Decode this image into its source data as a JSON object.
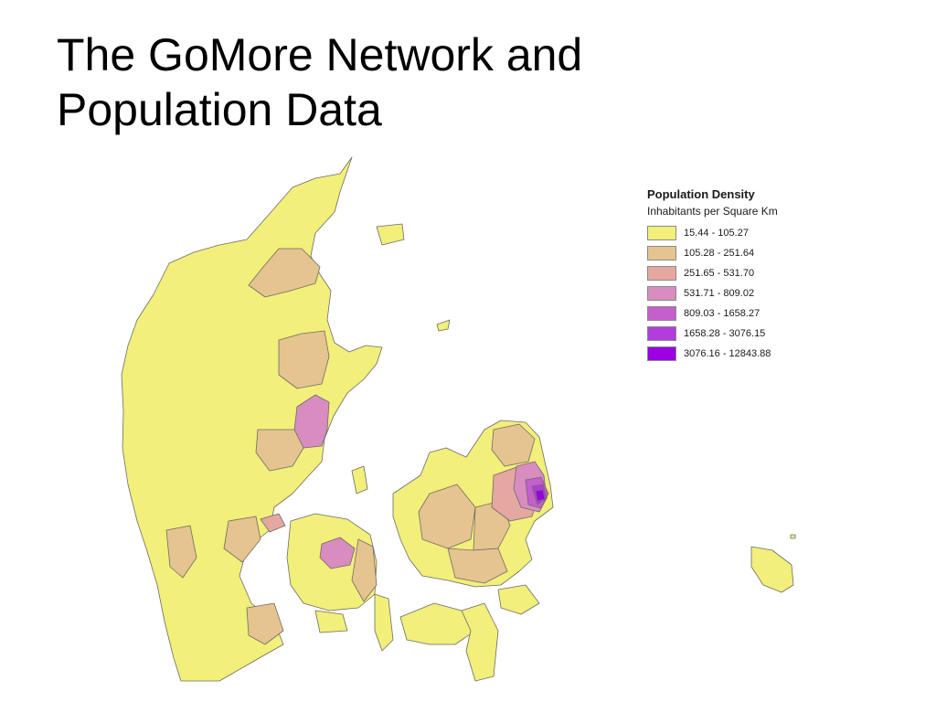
{
  "slide": {
    "title_line1": "The GoMore Network and",
    "title_line2": "Population Data"
  },
  "legend": {
    "title": "Population Density",
    "subtitle": "Inhabitants per Square Km",
    "classes": [
      {
        "label": "15.44 - 105.27",
        "color": "#f2ef7a"
      },
      {
        "label": "105.28 - 251.64",
        "color": "#e6c48f"
      },
      {
        "label": "251.65 - 531.70",
        "color": "#e4a8a0"
      },
      {
        "label": "531.71 - 809.02",
        "color": "#d98cc0"
      },
      {
        "label": "809.03 - 1658.27",
        "color": "#c45fcc"
      },
      {
        "label": "1658.28 - 3076.15",
        "color": "#b33ddc"
      },
      {
        "label": "3076.16 - 12843.88",
        "color": "#9a00e0"
      }
    ]
  }
}
